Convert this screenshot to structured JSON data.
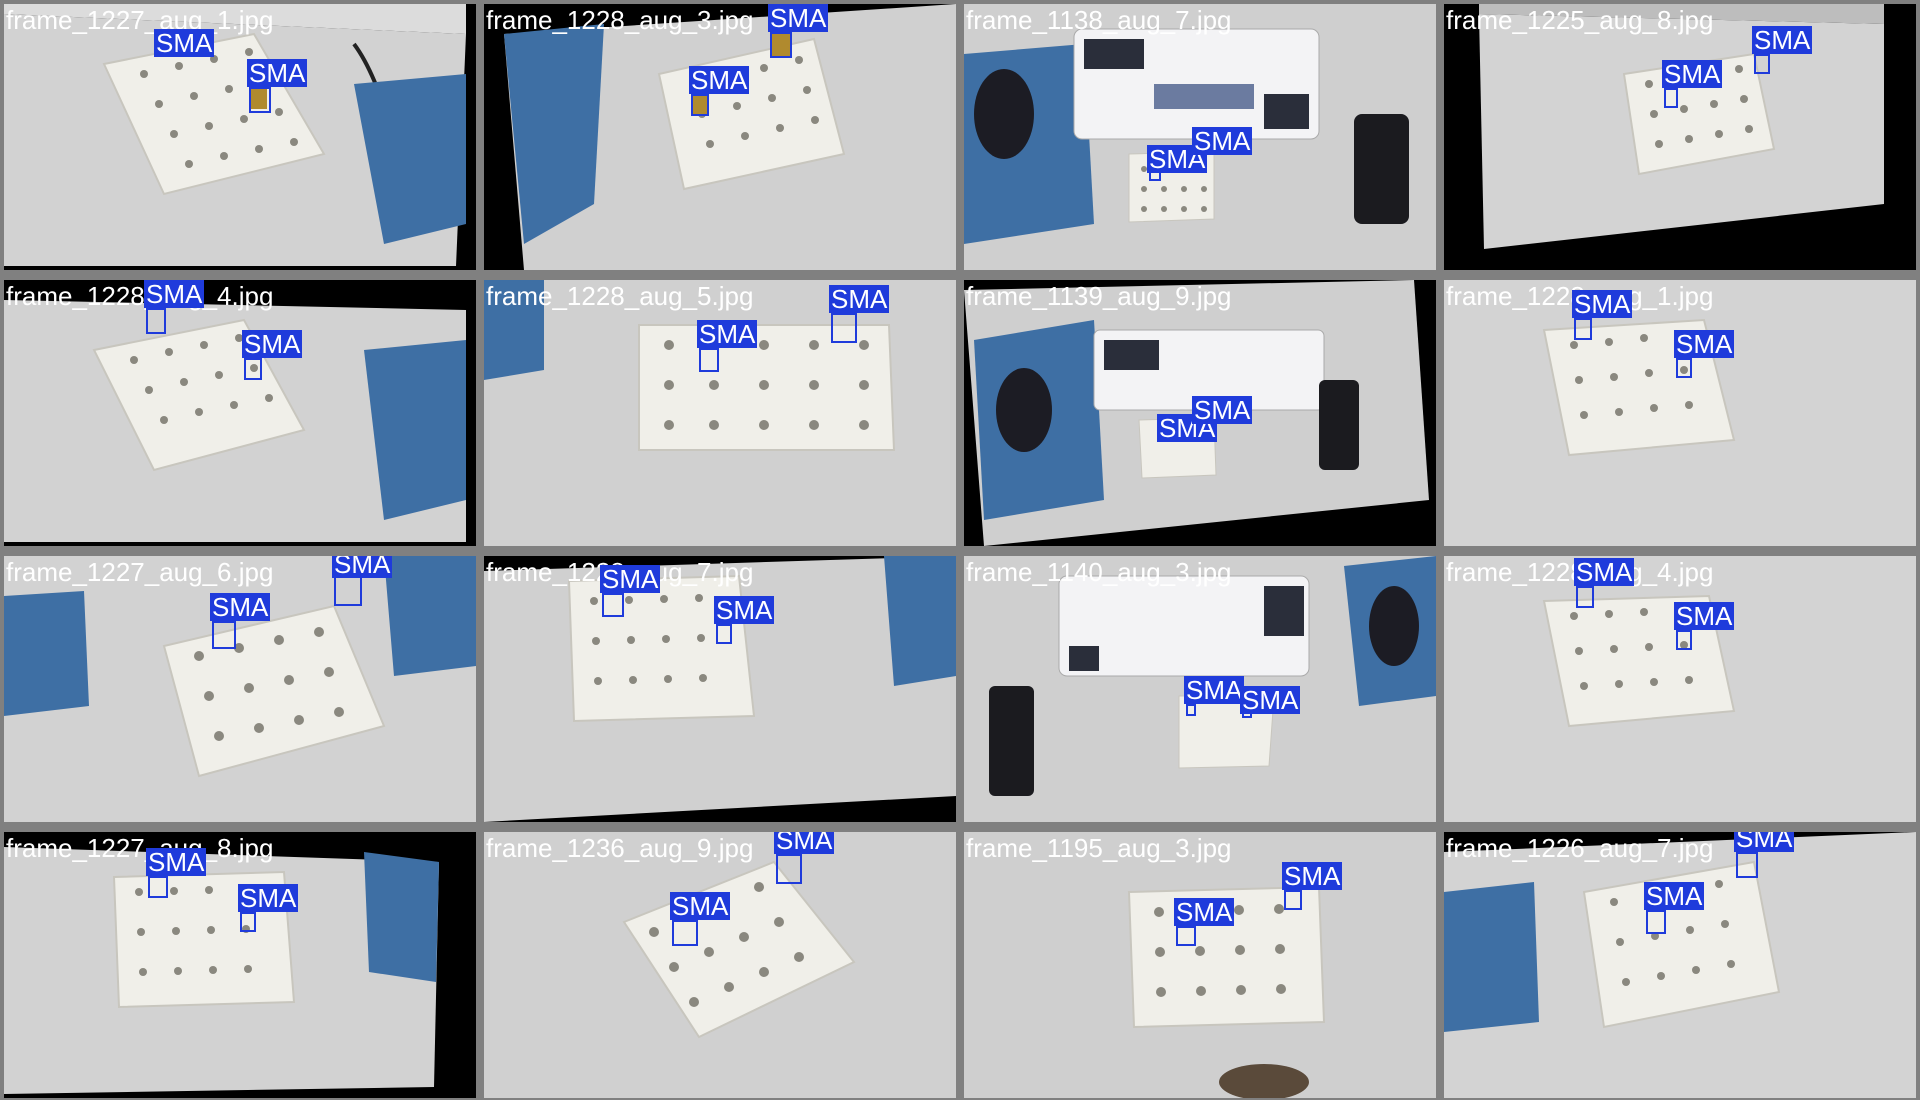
{
  "colors": {
    "background": "#808080",
    "box": "#1f3bdb",
    "label_text": "#ffffff",
    "filename_text": "#ffffff"
  },
  "tiles": [
    {
      "filename": "frame_1227_aug_1.jpg",
      "scene": "tray",
      "detections": [
        {
          "label": "SMA"
        },
        {
          "label": "SMA"
        }
      ]
    },
    {
      "filename": "frame_1228_aug_3.jpg",
      "scene": "tray",
      "detections": [
        {
          "label": "SMA"
        },
        {
          "label": "SMA"
        }
      ]
    },
    {
      "filename": "frame_1138_aug_7.jpg",
      "scene": "desk",
      "detections": [
        {
          "label": "SMA"
        },
        {
          "label": "SMA"
        }
      ]
    },
    {
      "filename": "frame_1225_aug_8.jpg",
      "scene": "tray",
      "detections": [
        {
          "label": "SMA"
        },
        {
          "label": "SMA"
        }
      ]
    },
    {
      "filename": "frame_1228_aug_4.jpg",
      "scene": "tray",
      "detections": [
        {
          "label": "SMA"
        },
        {
          "label": "SMA"
        }
      ]
    },
    {
      "filename": "frame_1228_aug_5.jpg",
      "scene": "tray",
      "detections": [
        {
          "label": "SMA"
        },
        {
          "label": "SMA"
        }
      ]
    },
    {
      "filename": "frame_1139_aug_9.jpg",
      "scene": "desk",
      "detections": [
        {
          "label": "SMA"
        },
        {
          "label": "SMA"
        }
      ]
    },
    {
      "filename": "frame_1228_aug_1.jpg",
      "scene": "tray",
      "detections": [
        {
          "label": "SMA"
        },
        {
          "label": "SMA"
        }
      ]
    },
    {
      "filename": "frame_1227_aug_6.jpg",
      "scene": "tray",
      "detections": [
        {
          "label": "SMA"
        },
        {
          "label": "SMA"
        }
      ]
    },
    {
      "filename": "frame_1228_aug_7.jpg",
      "scene": "tray",
      "detections": [
        {
          "label": "SMA"
        },
        {
          "label": "SMA"
        }
      ]
    },
    {
      "filename": "frame_1140_aug_3.jpg",
      "scene": "desk",
      "detections": [
        {
          "label": "SMA"
        },
        {
          "label": "SMA"
        }
      ]
    },
    {
      "filename": "frame_1228_aug_4.jpg",
      "scene": "tray",
      "detections": [
        {
          "label": "SMA"
        },
        {
          "label": "SMA"
        }
      ]
    },
    {
      "filename": "frame_1227_aug_8.jpg",
      "scene": "tray",
      "detections": [
        {
          "label": "SMA"
        },
        {
          "label": "SMA"
        }
      ]
    },
    {
      "filename": "frame_1236_aug_9.jpg",
      "scene": "tray",
      "detections": [
        {
          "label": "SMA"
        },
        {
          "label": "SMA"
        }
      ]
    },
    {
      "filename": "frame_1195_aug_3.jpg",
      "scene": "tray",
      "detections": [
        {
          "label": "SMA"
        },
        {
          "label": "SMA"
        }
      ]
    },
    {
      "filename": "frame_1226_aug_7.jpg",
      "scene": "tray",
      "detections": [
        {
          "label": "SMA"
        },
        {
          "label": "SMA"
        }
      ]
    }
  ]
}
